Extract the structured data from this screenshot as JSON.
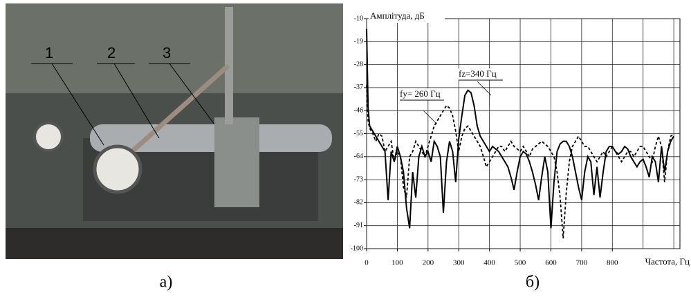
{
  "photo": {
    "labels": [
      "1",
      "2",
      "3"
    ],
    "caption": "а)"
  },
  "chart_data": {
    "type": "line",
    "caption": "б)",
    "ylabel": "Амплітуда, дБ",
    "xlabel": "Частота, Гц",
    "xlim": [
      0,
      1020
    ],
    "ylim": [
      -100,
      -10
    ],
    "xticks": [
      0,
      100,
      200,
      300,
      400,
      500,
      600,
      700,
      800
    ],
    "xgrid": [
      0,
      100,
      200,
      300,
      400,
      500,
      600,
      700,
      800,
      900,
      1000
    ],
    "yticks": [
      -10,
      -19,
      -28,
      -37,
      -46,
      -55,
      -64,
      -73,
      -82,
      -91,
      -100
    ],
    "grid": true,
    "annotations": [
      "fy= 260 Гц",
      "fz=340 Гц"
    ],
    "x": [
      0,
      5,
      10,
      20,
      30,
      40,
      50,
      60,
      70,
      80,
      90,
      100,
      110,
      120,
      130,
      140,
      150,
      160,
      170,
      180,
      190,
      200,
      210,
      220,
      230,
      240,
      250,
      260,
      270,
      280,
      290,
      300,
      310,
      320,
      330,
      340,
      350,
      360,
      370,
      380,
      390,
      400,
      410,
      420,
      430,
      440,
      450,
      460,
      470,
      480,
      490,
      500,
      510,
      520,
      530,
      540,
      550,
      560,
      570,
      580,
      590,
      600,
      610,
      620,
      630,
      640,
      650,
      660,
      670,
      680,
      690,
      700,
      710,
      720,
      730,
      740,
      750,
      760,
      770,
      780,
      790,
      800,
      810,
      820,
      830,
      840,
      850,
      860,
      870,
      880,
      890,
      900,
      910,
      920,
      930,
      940,
      950,
      960,
      970,
      980,
      990,
      1000
    ],
    "series": [
      {
        "color": "#000000",
        "style": "solid",
        "values": [
          -14,
          -45,
          -52,
          -54,
          -56,
          -58,
          -60,
          -62,
          -81,
          -62,
          -66,
          -60,
          -64,
          -70,
          -84,
          -92,
          -70,
          -80,
          -64,
          -60,
          -64,
          -62,
          -66,
          -58,
          -60,
          -64,
          -86,
          -66,
          -58,
          -62,
          -74,
          -57,
          -48,
          -40,
          -38,
          -39,
          -44,
          -52,
          -56,
          -58,
          -60,
          -62,
          -60,
          -61,
          -62,
          -64,
          -66,
          -68,
          -72,
          -77,
          -70,
          -64,
          -62,
          -63,
          -66,
          -70,
          -75,
          -81,
          -72,
          -64,
          -70,
          -92,
          -74,
          -62,
          -59,
          -58,
          -58,
          -60,
          -64,
          -70,
          -76,
          -81,
          -70,
          -64,
          -66,
          -79,
          -68,
          -80,
          -70,
          -62,
          -60,
          -60,
          -62,
          -63,
          -62,
          -60,
          -61,
          -64,
          -66,
          -68,
          -66,
          -65,
          -68,
          -72,
          -64,
          -66,
          -74,
          -60,
          -70,
          -62,
          -58,
          -56
        ]
      },
      {
        "color": "#000000",
        "style": "dashed",
        "values": [
          -36,
          -50,
          -53,
          -55,
          -58,
          -55,
          -56,
          -62,
          -60,
          -58,
          -66,
          -62,
          -64,
          -76,
          -80,
          -64,
          -62,
          -58,
          -60,
          -62,
          -64,
          -60,
          -56,
          -52,
          -50,
          -48,
          -46,
          -44,
          -45,
          -48,
          -54,
          -62,
          -56,
          -53,
          -52,
          -54,
          -56,
          -58,
          -60,
          -64,
          -68,
          -66,
          -64,
          -62,
          -60,
          -60,
          -62,
          -60,
          -58,
          -60,
          -61,
          -62,
          -60,
          -62,
          -64,
          -61,
          -60,
          -59,
          -58,
          -59,
          -60,
          -62,
          -64,
          -70,
          -80,
          -96,
          -78,
          -66,
          -60,
          -58,
          -56,
          -58,
          -60,
          -60,
          -62,
          -64,
          -66,
          -64,
          -62,
          -64,
          -62,
          -60,
          -62,
          -64,
          -66,
          -64,
          -62,
          -62,
          -64,
          -62,
          -60,
          -60,
          -62,
          -64,
          -66,
          -60,
          -56,
          -60,
          -74,
          -62,
          -56,
          -55
        ]
      }
    ]
  }
}
